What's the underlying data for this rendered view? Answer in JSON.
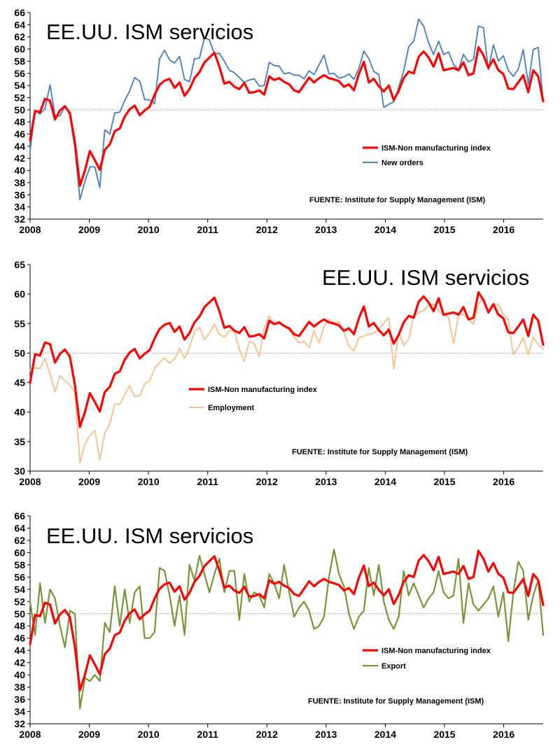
{
  "colors": {
    "ism": "#ff0000",
    "new_orders": "#4f81bd",
    "employment": "#fac090",
    "export": "#77933c",
    "ref": "#999999"
  },
  "chart_data": [
    {
      "type": "line",
      "title": "EE.UU. ISM servicios",
      "source": "FUENTE: Institute for Supply Management (ISM)",
      "xlim": [
        2008,
        2016.6667
      ],
      "ylim": [
        32,
        66
      ],
      "yticks": [
        32,
        34,
        36,
        38,
        40,
        42,
        44,
        46,
        48,
        50,
        52,
        54,
        56,
        58,
        60,
        62,
        64,
        66
      ],
      "xticks": [
        "2008",
        "2009",
        "2010",
        "2011",
        "2012",
        "2013",
        "2014",
        "2015",
        "2016"
      ],
      "reference_y": 50,
      "series": [
        {
          "name": "ISM-Non manufacturing index",
          "color": "#ff0000",
          "width": 3.2,
          "values": [
            45.0,
            49.8,
            49.6,
            51.8,
            51.5,
            48.4,
            49.9,
            50.6,
            49.4,
            44.6,
            37.5,
            40.0,
            43.2,
            41.7,
            40.1,
            43.4,
            44.3,
            46.5,
            46.9,
            48.9,
            50.1,
            50.7,
            49.1,
            49.9,
            50.5,
            52.5,
            54.1,
            54.8,
            55.1,
            53.6,
            54.5,
            52.3,
            53.4,
            55.2,
            56.2,
            57.8,
            58.6,
            59.4,
            57.1,
            54.3,
            54.6,
            53.8,
            53.4,
            54.4,
            52.8,
            52.9,
            53.2,
            52.5,
            55.5,
            54.9,
            55.2,
            54.6,
            54.2,
            53.2,
            52.9,
            54.1,
            55.3,
            54.5,
            55.2,
            55.7,
            55.2,
            55.0,
            54.7,
            53.8,
            54.2,
            53.2,
            55.9,
            57.9,
            54.5,
            55.1,
            53.9,
            53.0,
            54.0,
            51.6,
            53.1,
            55.2,
            56.3,
            56.0,
            58.7,
            59.6,
            58.6,
            57.1,
            59.3,
            56.5,
            56.7,
            56.9,
            56.5,
            57.8,
            55.7,
            56.0,
            60.3,
            59.0,
            56.9,
            58.3,
            56.5,
            55.9,
            53.5,
            53.4,
            54.5,
            55.7,
            52.9,
            56.5,
            55.5,
            51.4
          ]
        },
        {
          "name": "New orders",
          "color": "#4f81bd",
          "width": 1.9,
          "values": [
            43.3,
            49.9,
            49.3,
            50.2,
            54.1,
            49.0,
            49.0,
            50.6,
            49.1,
            43.6,
            35.2,
            38.2,
            40.6,
            40.6,
            37.2,
            46.7,
            46.0,
            49.5,
            49.6,
            51.5,
            53.1,
            55.3,
            54.7,
            51.7,
            51.6,
            51.0,
            58.4,
            59.8,
            58.2,
            57.7,
            58.8,
            55.0,
            54.6,
            58.4,
            58.5,
            61.9,
            61.5,
            59.2,
            59.3,
            58.0,
            56.5,
            56.1,
            55.3,
            54.5,
            54.9,
            55.1,
            53.9,
            54.0,
            57.8,
            57.3,
            57.2,
            55.9,
            56.1,
            55.7,
            55.7,
            55.1,
            56.4,
            55.8,
            57.4,
            59.0,
            55.9,
            56.0,
            55.2,
            55.4,
            55.9,
            55.0,
            56.8,
            59.7,
            58.4,
            56.3,
            55.8,
            50.4,
            50.9,
            51.3,
            53.7,
            56.4,
            60.4,
            61.3,
            64.9,
            63.8,
            61.0,
            59.1,
            61.3,
            59.1,
            59.5,
            57.5,
            56.6,
            59.1,
            57.9,
            58.3,
            63.8,
            63.5,
            56.6,
            60.7,
            58.0,
            58.9,
            56.5,
            55.5,
            56.7,
            59.9,
            54.2,
            59.9,
            60.3,
            51.4
          ]
        }
      ]
    },
    {
      "type": "line",
      "title": "EE.UU. ISM servicios",
      "source": "FUENTE: Institute for Supply Management (ISM)",
      "xlim": [
        2008,
        2016.6667
      ],
      "ylim": [
        30,
        65
      ],
      "yticks": [
        30,
        35,
        40,
        45,
        50,
        55,
        60,
        65
      ],
      "xticks": [
        "2008",
        "2009",
        "2010",
        "2011",
        "2012",
        "2013",
        "2014",
        "2015",
        "2016"
      ],
      "reference_y": 50,
      "series": [
        {
          "name": "ISM-Non manufacturing index",
          "color": "#ff0000",
          "width": 3.2,
          "values": [
            45.0,
            49.8,
            49.6,
            51.8,
            51.5,
            48.4,
            49.9,
            50.6,
            49.4,
            44.6,
            37.5,
            40.0,
            43.2,
            41.7,
            40.1,
            43.4,
            44.3,
            46.5,
            46.9,
            48.9,
            50.1,
            50.7,
            49.1,
            49.9,
            50.5,
            52.5,
            54.1,
            54.8,
            55.1,
            53.6,
            54.5,
            52.3,
            53.4,
            55.2,
            56.2,
            57.8,
            58.6,
            59.4,
            57.1,
            54.3,
            54.6,
            53.8,
            53.4,
            54.4,
            52.8,
            52.9,
            53.2,
            52.5,
            55.5,
            54.9,
            55.2,
            54.6,
            54.2,
            53.2,
            52.9,
            54.1,
            55.3,
            54.5,
            55.2,
            55.7,
            55.2,
            55.0,
            54.7,
            53.8,
            54.2,
            53.2,
            55.9,
            57.9,
            54.5,
            55.1,
            53.9,
            53.0,
            54.0,
            51.6,
            53.1,
            55.2,
            56.3,
            56.0,
            58.7,
            59.6,
            58.6,
            57.1,
            59.3,
            56.5,
            56.7,
            56.9,
            56.5,
            57.8,
            55.7,
            56.0,
            60.3,
            59.0,
            56.9,
            58.3,
            56.5,
            55.9,
            53.5,
            53.4,
            54.5,
            55.7,
            52.9,
            56.5,
            55.5,
            51.4
          ]
        },
        {
          "name": "Employment",
          "color": "#fac090",
          "width": 1.9,
          "values": [
            47.1,
            47.5,
            47.4,
            49.1,
            46.5,
            43.4,
            46.2,
            45.3,
            44.6,
            43.3,
            31.4,
            34.6,
            36.0,
            36.9,
            31.9,
            36.5,
            38.0,
            41.4,
            41.3,
            42.9,
            44.5,
            42.6,
            42.8,
            44.8,
            45.3,
            47.4,
            48.4,
            49.2,
            48.3,
            49.0,
            50.8,
            49.1,
            51.0,
            53.6,
            54.4,
            52.3,
            53.4,
            54.9,
            53.2,
            52.7,
            53.8,
            53.8,
            50.6,
            48.6,
            52.0,
            51.6,
            49.4,
            54.3,
            56.3,
            55.0,
            55.3,
            54.5,
            53.9,
            52.7,
            51.8,
            52.0,
            50.9,
            53.8,
            51.7,
            54.5,
            55.7,
            55.1,
            55.3,
            53.6,
            51.2,
            50.4,
            52.6,
            52.9,
            53.2,
            53.4,
            54.0,
            55.1,
            56.0,
            47.3,
            53.5,
            51.3,
            52.4,
            56.3,
            56.9,
            57.2,
            58.1,
            58.3,
            57.2,
            56.4,
            56.1,
            51.6,
            56.5,
            56.6,
            55.7,
            54.9,
            58.4,
            59.2,
            56.7,
            58.1,
            58.3,
            56.6,
            55.7,
            49.7,
            51.0,
            52.6,
            49.7,
            52.7,
            51.4,
            50.7
          ]
        }
      ]
    },
    {
      "type": "line",
      "title": "EE.UU. ISM servicios",
      "source": "FUENTE: Institute for Supply Management (ISM)",
      "xlim": [
        2008,
        2016.6667
      ],
      "ylim": [
        32,
        66
      ],
      "yticks": [
        32,
        34,
        36,
        38,
        40,
        42,
        44,
        46,
        48,
        50,
        52,
        54,
        56,
        58,
        60,
        62,
        64,
        66
      ],
      "xticks": [
        "2008",
        "2009",
        "2010",
        "2011",
        "2012",
        "2013",
        "2014",
        "2015",
        "2016"
      ],
      "reference_y": 50,
      "series": [
        {
          "name": "ISM-Non manufacturing index",
          "color": "#ff0000",
          "width": 3.2,
          "values": [
            45.0,
            49.8,
            49.6,
            51.8,
            51.5,
            48.4,
            49.9,
            50.6,
            49.4,
            44.6,
            37.5,
            40.0,
            43.2,
            41.7,
            40.1,
            43.4,
            44.3,
            46.5,
            46.9,
            48.9,
            50.1,
            50.7,
            49.1,
            49.9,
            50.5,
            52.5,
            54.1,
            54.8,
            55.1,
            53.6,
            54.5,
            52.3,
            53.4,
            55.2,
            56.2,
            57.8,
            58.6,
            59.4,
            57.1,
            54.3,
            54.6,
            53.8,
            53.4,
            54.4,
            52.8,
            52.9,
            53.2,
            52.5,
            55.5,
            54.9,
            55.2,
            54.6,
            54.2,
            53.2,
            52.9,
            54.1,
            55.3,
            54.5,
            55.2,
            55.7,
            55.2,
            55.0,
            54.7,
            53.8,
            54.2,
            53.2,
            55.9,
            57.9,
            54.5,
            55.1,
            53.9,
            53.0,
            54.0,
            51.6,
            53.1,
            55.2,
            56.3,
            56.0,
            58.7,
            59.6,
            58.6,
            57.1,
            59.3,
            56.5,
            56.7,
            56.9,
            56.5,
            57.8,
            55.7,
            56.0,
            60.3,
            59.0,
            56.9,
            58.3,
            56.5,
            55.9,
            53.5,
            53.4,
            54.5,
            55.7,
            52.9,
            56.5,
            55.5,
            51.4
          ]
        },
        {
          "name": "Export",
          "color": "#77933c",
          "width": 2.2,
          "values": [
            52.0,
            46.5,
            55.0,
            48.5,
            54.0,
            52.5,
            48.0,
            44.5,
            50.5,
            50.0,
            34.5,
            39.5,
            39.0,
            40.0,
            39.0,
            48.5,
            47.0,
            54.5,
            48.0,
            54.0,
            48.5,
            53.5,
            54.5,
            46.0,
            46.0,
            47.0,
            57.5,
            57.0,
            53.0,
            48.0,
            53.0,
            46.5,
            58.0,
            55.5,
            59.5,
            56.5,
            53.5,
            56.5,
            59.0,
            53.5,
            57.0,
            57.0,
            49.0,
            56.5,
            52.0,
            53.5,
            53.0,
            51.0,
            56.5,
            55.0,
            52.5,
            58.0,
            53.5,
            49.5,
            51.0,
            52.0,
            50.5,
            47.5,
            48.0,
            49.5,
            56.0,
            60.5,
            56.5,
            54.5,
            50.0,
            47.5,
            49.5,
            50.5,
            57.5,
            53.0,
            58.0,
            52.0,
            49.0,
            47.5,
            49.5,
            57.0,
            53.0,
            55.0,
            53.0,
            51.0,
            52.5,
            53.5,
            57.0,
            53.5,
            52.5,
            53.0,
            59.0,
            48.5,
            55.0,
            51.5,
            50.5,
            51.5,
            52.5,
            54.5,
            49.5,
            53.5,
            45.5,
            53.5,
            58.5,
            57.0,
            49.0,
            53.0,
            55.5,
            46.5
          ]
        }
      ]
    }
  ]
}
